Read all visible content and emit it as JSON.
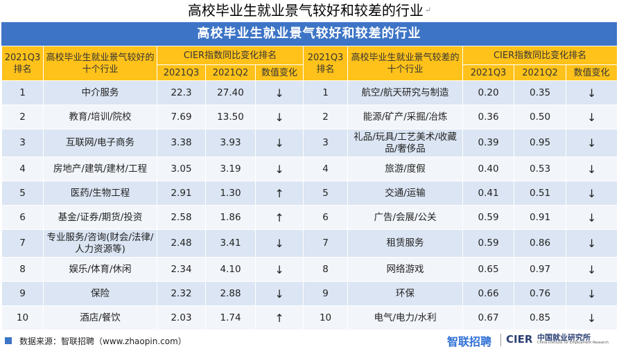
{
  "doc_title": "高校毕业生就业景气较好和较差的行业",
  "doc_title_mark": "↵",
  "table_caption": "高校毕业生就业景气较好和较差的行业",
  "headers": {
    "rank": "2021Q3排名",
    "good_industries": "高校毕业生就业景气较好的十个行业",
    "bad_industries": "高校毕业生就业景气较差的十个行业",
    "cier_group": "CIER指数同比变化排名",
    "q3": "2021Q3",
    "q2": "2021Q2",
    "change": "数值变化"
  },
  "rows": [
    {
      "rank": "1",
      "good": "中介服务",
      "gq3": "22.3",
      "gq2": "27.40",
      "gch": "↓",
      "rank2": "1",
      "bad": "航空/航天研究与制造",
      "bq3": "0.20",
      "bq2": "0.35",
      "bch": "↓"
    },
    {
      "rank": "2",
      "good": "教育/培训/院校",
      "gq3": "7.69",
      "gq2": "13.50",
      "gch": "↓",
      "rank2": "2",
      "bad": "能源/矿产/采掘/冶炼",
      "bq3": "0.36",
      "bq2": "0.50",
      "bch": "↓"
    },
    {
      "rank": "3",
      "good": "互联网/电子商务",
      "gq3": "3.38",
      "gq2": "3.93",
      "gch": "↓",
      "rank2": "3",
      "bad": "礼品/玩具/工艺美术/收藏品/奢侈品",
      "bq3": "0.39",
      "bq2": "0.95",
      "bch": "↓"
    },
    {
      "rank": "4",
      "good": "房地产/建筑/建材/工程",
      "gq3": "3.05",
      "gq2": "3.19",
      "gch": "↓",
      "rank2": "4",
      "bad": "旅游/度假",
      "bq3": "0.40",
      "bq2": "0.53",
      "bch": "↓"
    },
    {
      "rank": "5",
      "good": "医药/生物工程",
      "gq3": "2.91",
      "gq2": "1.30",
      "gch": "↑",
      "rank2": "5",
      "bad": "交通/运输",
      "bq3": "0.41",
      "bq2": "0.51",
      "bch": "↓"
    },
    {
      "rank": "6",
      "good": "基金/证券/期货/投资",
      "gq3": "2.58",
      "gq2": "1.86",
      "gch": "↑",
      "rank2": "6",
      "bad": "广告/会展/公关",
      "bq3": "0.59",
      "bq2": "0.91",
      "bch": "↓"
    },
    {
      "rank": "7",
      "good": "专业服务/咨询(财会/法律/人力资源等)",
      "gq3": "2.48",
      "gq2": "3.41",
      "gch": "↓",
      "rank2": "7",
      "bad": "租赁服务",
      "bq3": "0.59",
      "bq2": "0.86",
      "bch": "↓"
    },
    {
      "rank": "8",
      "good": "娱乐/体育/休闲",
      "gq3": "2.34",
      "gq2": "4.10",
      "gch": "↓",
      "rank2": "8",
      "bad": "网络游戏",
      "bq3": "0.65",
      "bq2": "0.97",
      "bch": "↓"
    },
    {
      "rank": "9",
      "good": "保险",
      "gq3": "2.32",
      "gq2": "2.88",
      "gch": "↓",
      "rank2": "9",
      "bad": "环保",
      "bq3": "0.66",
      "bq2": "0.76",
      "bch": "↓"
    },
    {
      "rank": "10",
      "good": "酒店/餐饮",
      "gq3": "2.03",
      "gq2": "1.74",
      "gch": "↑",
      "rank2": "10",
      "bad": "电气/电力/水利",
      "bq3": "0.67",
      "bq2": "0.85",
      "bch": "↓"
    }
  ],
  "footer": {
    "source": "数据来源：智联招聘（www.zhaopin.com）",
    "brand_zhaopin": "智联招聘",
    "brand_cier": "CIER",
    "brand_cier_cn": "中国就业研究所",
    "brand_cier_en": "China Institute for Employment Research"
  },
  "colors": {
    "caption_bg": "#3d74c6",
    "header_bg": "#ffc21a",
    "row_odd": "#dbe5f3",
    "row_even": "#f2f5fa"
  }
}
